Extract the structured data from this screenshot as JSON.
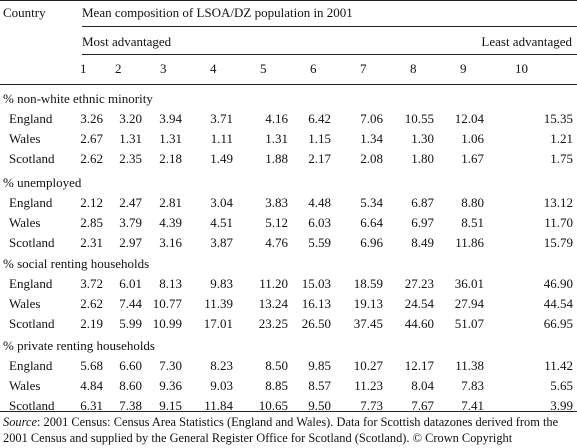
{
  "header": {
    "country_label": "Country",
    "group_title": "Mean composition of LSOA/DZ population in 2001",
    "left_label": "Most advantaged",
    "right_label": "Least advantaged",
    "columns": [
      "1",
      "2",
      "3",
      "4",
      "5",
      "6",
      "7",
      "8",
      "9",
      "10"
    ]
  },
  "sections": [
    {
      "title": "% non-white ethnic minority",
      "rows": [
        {
          "country": "England",
          "values": [
            "3.26",
            "3.20",
            "3.94",
            "3.71",
            "4.16",
            "6.42",
            "7.06",
            "10.55",
            "12.04",
            "15.35"
          ]
        },
        {
          "country": "Wales",
          "values": [
            "2.67",
            "1.31",
            "1.31",
            "1.11",
            "1.31",
            "1.15",
            "1.34",
            "1.30",
            "1.06",
            "1.21"
          ]
        },
        {
          "country": "Scotland",
          "values": [
            "2.62",
            "2.35",
            "2.18",
            "1.49",
            "1.88",
            "2.17",
            "2.08",
            "1.80",
            "1.67",
            "1.75"
          ]
        }
      ]
    },
    {
      "title": "% unemployed",
      "rows": [
        {
          "country": "England",
          "values": [
            "2.12",
            "2.47",
            "2.81",
            "3.04",
            "3.83",
            "4.48",
            "5.34",
            "6.87",
            "8.80",
            "13.12"
          ]
        },
        {
          "country": "Wales",
          "values": [
            "2.85",
            "3.79",
            "4.39",
            "4.51",
            "5.12",
            "6.03",
            "6.64",
            "6.97",
            "8.51",
            "11.70"
          ]
        },
        {
          "country": "Scotland",
          "values": [
            "2.31",
            "2.97",
            "3.16",
            "3.87",
            "4.76",
            "5.59",
            "6.96",
            "8.49",
            "11.86",
            "15.79"
          ]
        }
      ]
    },
    {
      "title": "% social renting households",
      "rows": [
        {
          "country": "England",
          "values": [
            "3.72",
            "6.01",
            "8.13",
            "9.83",
            "11.20",
            "15.03",
            "18.59",
            "27.23",
            "36.01",
            "46.90"
          ]
        },
        {
          "country": "Wales",
          "values": [
            "2.62",
            "7.44",
            "10.77",
            "11.39",
            "13.24",
            "16.13",
            "19.13",
            "24.54",
            "27.94",
            "44.54"
          ]
        },
        {
          "country": "Scotland",
          "values": [
            "2.19",
            "5.99",
            "10.99",
            "17.01",
            "23.25",
            "26.50",
            "37.45",
            "44.60",
            "51.07",
            "66.95"
          ]
        }
      ]
    },
    {
      "title": "% private renting households",
      "rows": [
        {
          "country": "England",
          "values": [
            "5.68",
            "6.60",
            "7.30",
            "8.23",
            "8.50",
            "9.85",
            "10.27",
            "12.17",
            "11.38",
            "11.42"
          ]
        },
        {
          "country": "Wales",
          "values": [
            "4.84",
            "8.60",
            "9.36",
            "9.03",
            "8.85",
            "8.57",
            "11.23",
            "8.04",
            "7.83",
            "5.65"
          ]
        },
        {
          "country": "Scotland",
          "values": [
            "6.31",
            "7.38",
            "9.15",
            "11.84",
            "10.65",
            "9.50",
            "7.73",
            "7.67",
            "7.41",
            "3.99"
          ]
        }
      ]
    }
  ],
  "source": {
    "label": "Source",
    "text": ": 2001 Census: Census Area Statistics (England and Wales). Data for Scottish datazones derived from the 2001 Census and supplied by the General Register Office for Scotland (Scotland). © Crown Copyright"
  }
}
